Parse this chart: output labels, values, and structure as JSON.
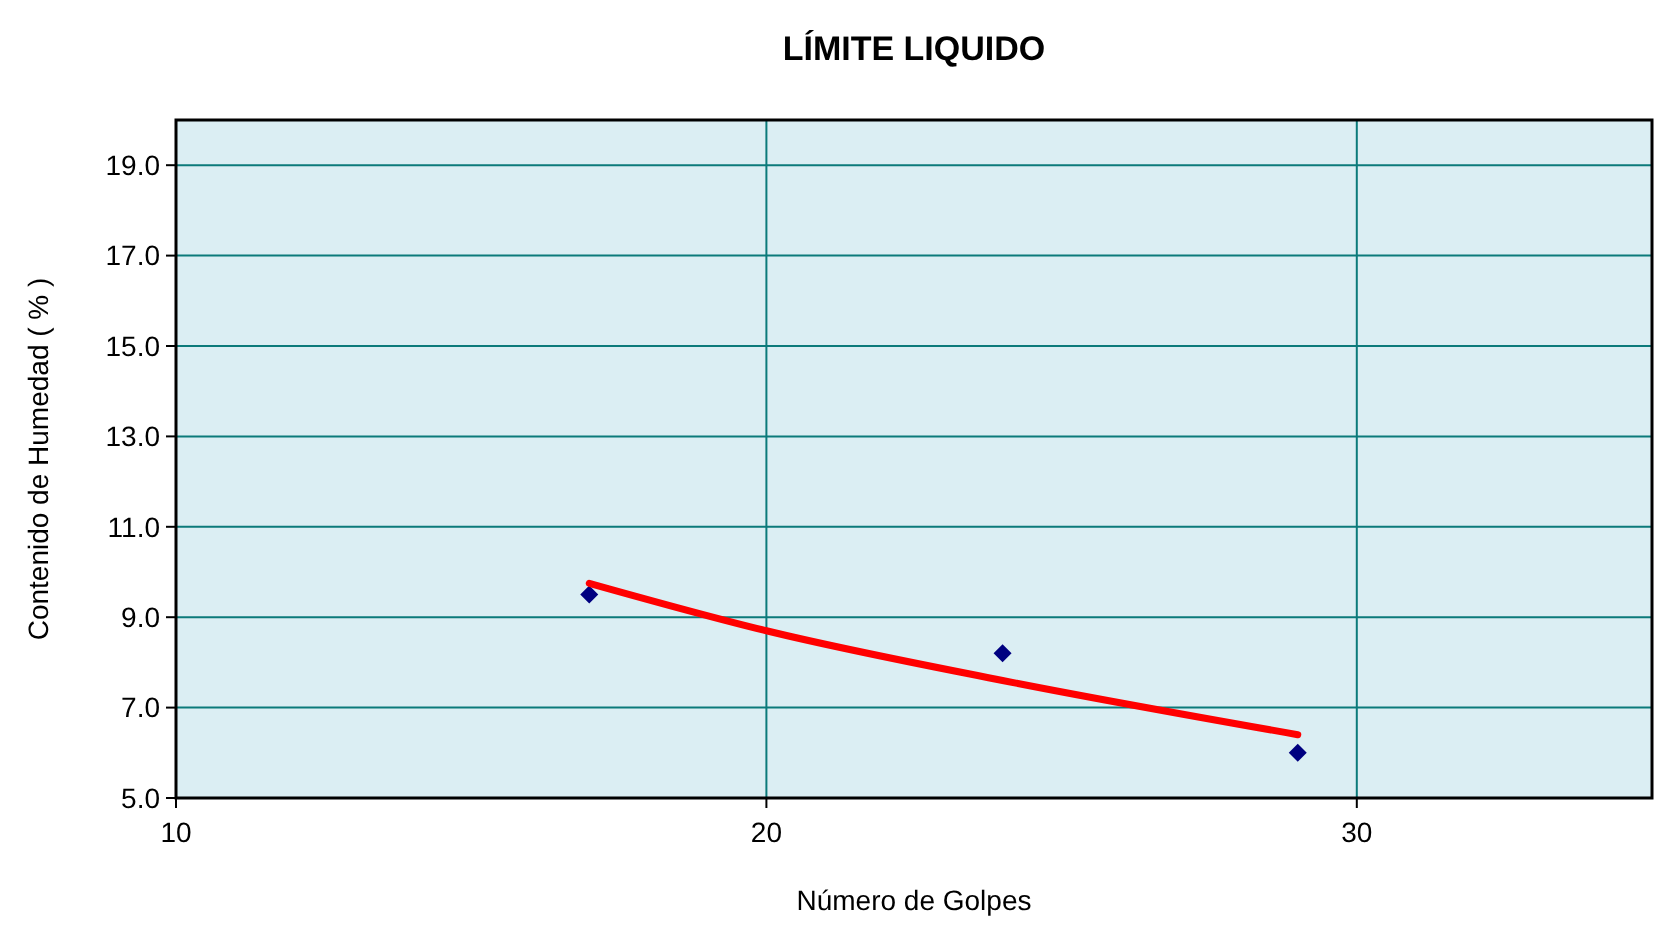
{
  "chart_data": {
    "type": "scatter",
    "title": "LÍMITE LIQUIDO",
    "xlabel": "Número de Golpes",
    "ylabel": "Contenido de Humedad ( % )",
    "xlim": [
      10,
      35
    ],
    "xticks": [
      10,
      20,
      30
    ],
    "ylim": [
      5,
      20
    ],
    "yticks": [
      {
        "value": 5,
        "label": "5.0"
      },
      {
        "value": 7,
        "label": "7.0"
      },
      {
        "value": 9,
        "label": "9.0"
      },
      {
        "value": 11,
        "label": "11.0"
      },
      {
        "value": 13,
        "label": "13.0"
      },
      {
        "value": 15,
        "label": "15.0"
      },
      {
        "value": 17,
        "label": "17.0"
      },
      {
        "value": 19,
        "label": "19.0"
      }
    ],
    "grid": true,
    "marker": "diamond",
    "series": [
      {
        "color": "#000080",
        "x": [
          17,
          24,
          29
        ],
        "values": [
          9.5,
          8.2,
          6.0
        ]
      },
      {
        "type": "line",
        "color": "#ff0000",
        "marker": "none",
        "x": [
          17,
          20,
          24,
          29
        ],
        "values": [
          9.75,
          8.7,
          7.6,
          6.4
        ]
      }
    ]
  }
}
